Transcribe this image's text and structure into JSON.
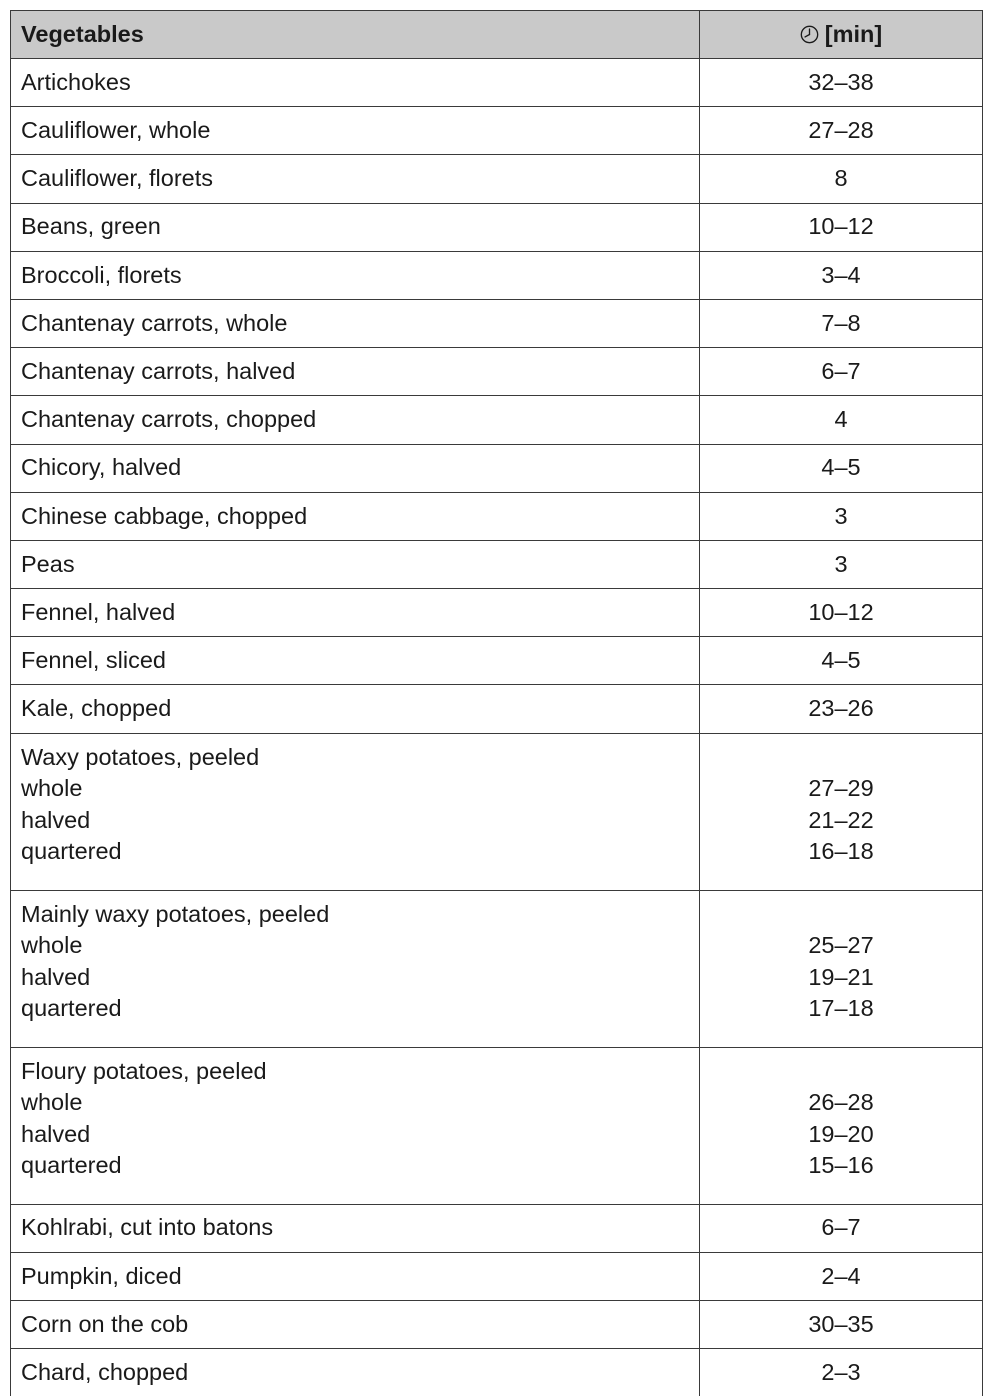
{
  "table": {
    "header": {
      "vegetables_label": "Vegetables",
      "time_icon": "clock-icon",
      "time_label": "[min]"
    },
    "rows": [
      {
        "name": "Artichokes",
        "time": "32–38"
      },
      {
        "name": "Cauliflower, whole",
        "time": "27–28"
      },
      {
        "name": "Cauliflower, florets",
        "time": "8"
      },
      {
        "name": "Beans, green",
        "time": "10–12"
      },
      {
        "name": "Broccoli, florets",
        "time": "3–4"
      },
      {
        "name": "Chantenay carrots, whole",
        "time": "7–8"
      },
      {
        "name": "Chantenay carrots, halved",
        "time": "6–7"
      },
      {
        "name": "Chantenay carrots, chopped",
        "time": "4"
      },
      {
        "name": "Chicory, halved",
        "time": "4–5"
      },
      {
        "name": "Chinese cabbage, chopped",
        "time": "3"
      },
      {
        "name": "Peas",
        "time": "3"
      },
      {
        "name": "Fennel, halved",
        "time": "10–12"
      },
      {
        "name": "Fennel, sliced",
        "time": "4–5"
      },
      {
        "name": "Kale, chopped",
        "time": "23–26"
      },
      {
        "name": "Waxy potatoes, peeled",
        "sub": [
          {
            "label": "whole",
            "time": "27–29"
          },
          {
            "label": "halved",
            "time": "21–22"
          },
          {
            "label": "quartered",
            "time": "16–18"
          }
        ]
      },
      {
        "name": "Mainly waxy potatoes, peeled",
        "sub": [
          {
            "label": "whole",
            "time": "25–27"
          },
          {
            "label": "halved",
            "time": "19–21"
          },
          {
            "label": "quartered",
            "time": "17–18"
          }
        ]
      },
      {
        "name": "Floury potatoes, peeled",
        "sub": [
          {
            "label": "whole",
            "time": "26–28"
          },
          {
            "label": "halved",
            "time": "19–20"
          },
          {
            "label": "quartered",
            "time": "15–16"
          }
        ]
      },
      {
        "name": "Kohlrabi, cut into batons",
        "time": "6–7"
      },
      {
        "name": "Pumpkin, diced",
        "time": "2–4"
      },
      {
        "name": "Corn on the cob",
        "time": "30–35"
      },
      {
        "name": "Chard, chopped",
        "time": "2–3"
      }
    ]
  }
}
